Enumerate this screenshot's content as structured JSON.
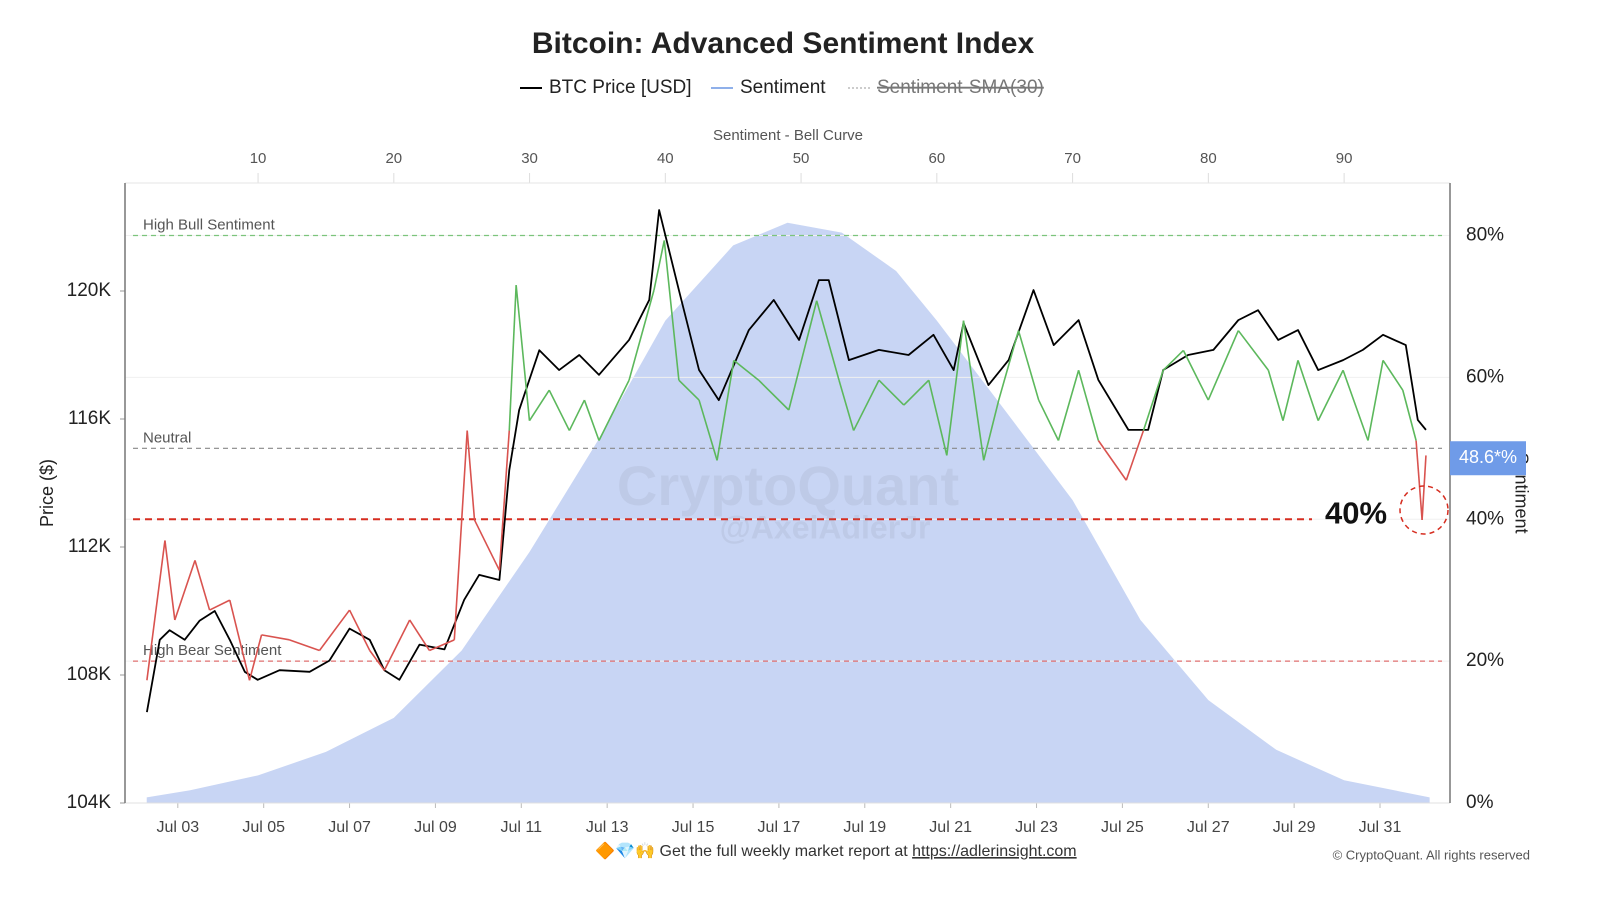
{
  "chart_data": {
    "type": "line",
    "title": "Bitcoin: Advanced Sentiment Index",
    "legend": [
      {
        "name": "BTC Price [USD]",
        "color": "#000000",
        "hidden": false
      },
      {
        "name": "Sentiment",
        "color": "#8fb0ea",
        "hidden": false
      },
      {
        "name": "Sentiment-SMA(30)",
        "color": "#999999",
        "hidden": true
      }
    ],
    "ylabel": "Price ($)",
    "y2label": "Sentiment",
    "x2label": "Sentiment - Bell Curve",
    "xlim": [
      1.77,
      32.63
    ],
    "xticks": [
      {
        "value": 3,
        "label": "Jul 03"
      },
      {
        "value": 5,
        "label": "Jul 05"
      },
      {
        "value": 7,
        "label": "Jul 07"
      },
      {
        "value": 9,
        "label": "Jul 09"
      },
      {
        "value": 11,
        "label": "Jul 11"
      },
      {
        "value": 13,
        "label": "Jul 13"
      },
      {
        "value": 15,
        "label": "Jul 15"
      },
      {
        "value": 17,
        "label": "Jul 17"
      },
      {
        "value": 19,
        "label": "Jul 19"
      },
      {
        "value": 21,
        "label": "Jul 21"
      },
      {
        "value": 23,
        "label": "Jul 23"
      },
      {
        "value": 25,
        "label": "Jul 25"
      },
      {
        "value": 27,
        "label": "Jul 27"
      },
      {
        "value": 29,
        "label": "Jul 29"
      },
      {
        "value": 31,
        "label": "Jul 31"
      }
    ],
    "x2lim": [
      0.2,
      97.8
    ],
    "x2ticks": [
      10,
      20,
      30,
      40,
      50,
      60,
      70,
      80,
      90
    ],
    "ylim": [
      104000,
      123375
    ],
    "yticks": [
      {
        "value": 104000,
        "label": "104K"
      },
      {
        "value": 108000,
        "label": "108K"
      },
      {
        "value": 112000,
        "label": "112K"
      },
      {
        "value": 116000,
        "label": "116K"
      },
      {
        "value": 120000,
        "label": "120K"
      }
    ],
    "y2lim": [
      0,
      87.4
    ],
    "y2ticks": [
      {
        "value": 0,
        "label": "0%"
      },
      {
        "value": 20,
        "label": "20%"
      },
      {
        "value": 40,
        "label": "40%"
      },
      {
        "value": 60,
        "label": "60%"
      },
      {
        "value": 80,
        "label": "80%"
      }
    ],
    "grid": true,
    "bell_curve": {
      "color": "#c8d5f4",
      "x": [
        1.8,
        5,
        10,
        15,
        20,
        25,
        30,
        35,
        40,
        45,
        49,
        53,
        57,
        60,
        65,
        70,
        75,
        80,
        85,
        90,
        96.3
      ],
      "values": [
        0.8,
        1.8,
        3.9,
        7.2,
        12,
        21.5,
        35.4,
        51,
        68,
        78.6,
        81.8,
        80.4,
        75,
        68,
        55.4,
        42.7,
        25.8,
        14.5,
        7.5,
        3.2,
        0.8
      ]
    },
    "series": [
      {
        "name": "BTC Price [USD]",
        "axis": "y",
        "color": "#000000",
        "x": [
          2.28,
          2.58,
          2.81,
          3.16,
          3.51,
          3.86,
          4.21,
          4.56,
          4.86,
          5.37,
          6.07,
          6.53,
          7.0,
          7.47,
          7.81,
          8.16,
          8.63,
          9.21,
          9.67,
          10.02,
          10.49,
          10.72,
          10.95,
          11.42,
          11.88,
          12.35,
          12.81,
          13.51,
          13.98,
          14.21,
          14.67,
          15.14,
          15.6,
          16.3,
          16.88,
          17.47,
          17.93,
          18.16,
          18.63,
          19.33,
          20.02,
          20.6,
          21.07,
          21.3,
          21.88,
          22.35,
          22.93,
          23.4,
          23.98,
          24.44,
          25.14,
          25.6,
          25.95,
          26.53,
          27.12,
          27.7,
          28.16,
          28.63,
          29.09,
          29.56,
          30.14,
          30.6,
          31.07,
          31.6,
          31.88,
          32.07
        ],
        "values": [
          106840,
          109100,
          109400,
          109100,
          109700,
          110000,
          109100,
          108100,
          107850,
          108150,
          108100,
          108450,
          109450,
          109100,
          108150,
          107850,
          108950,
          108800,
          110350,
          111130,
          110970,
          114400,
          116280,
          118150,
          117530,
          118000,
          117380,
          118470,
          119720,
          122530,
          120030,
          117530,
          116590,
          118780,
          119720,
          118470,
          120340,
          120340,
          117840,
          118160,
          118000,
          118630,
          117530,
          119000,
          117060,
          117840,
          120030,
          118310,
          119090,
          117220,
          115660,
          115660,
          117530,
          118000,
          118160,
          119090,
          119400,
          118470,
          118780,
          117530,
          117840,
          118160,
          118630,
          118310,
          115970,
          115660
        ]
      },
      {
        "name": "Sentiment",
        "axis": "y2",
        "color_above": "#5cb85c",
        "color_below": "#d9534f",
        "x": [
          2.28,
          2.7,
          2.93,
          3.4,
          3.74,
          4.21,
          4.67,
          4.95,
          5.6,
          6.3,
          7.0,
          7.47,
          7.81,
          8.4,
          8.86,
          9.44,
          9.74,
          9.91,
          10.49,
          10.72,
          10.88,
          11.19,
          11.65,
          12.12,
          12.47,
          12.81,
          13.51,
          14.09,
          14.33,
          14.67,
          15.14,
          15.56,
          15.95,
          16.53,
          17.23,
          17.88,
          18.4,
          18.74,
          19.33,
          19.91,
          20.49,
          20.91,
          21.3,
          21.77,
          22.12,
          22.58,
          23.05,
          23.51,
          23.98,
          24.44,
          25.09,
          25.49,
          25.95,
          26.42,
          27.0,
          27.7,
          28.4,
          28.74,
          29.09,
          29.56,
          30.14,
          30.72,
          31.07,
          31.53,
          31.84,
          31.98,
          32.07
        ],
        "values": [
          17.3,
          37,
          25.8,
          34.2,
          27.2,
          28.6,
          17.3,
          23.7,
          23,
          21.5,
          27.2,
          21.5,
          18.7,
          25.8,
          21.5,
          23,
          52.5,
          39.9,
          32.8,
          52.5,
          73,
          53.9,
          58.2,
          52.5,
          56.8,
          51.1,
          59.6,
          72.3,
          79.3,
          59.6,
          56.8,
          48.3,
          62.4,
          59.6,
          55.4,
          70.8,
          59.6,
          52.5,
          59.6,
          56.1,
          59.6,
          49,
          68,
          48.3,
          56.8,
          66.6,
          56.8,
          51.1,
          61,
          51.1,
          45.5,
          52.5,
          61,
          63.8,
          56.8,
          66.6,
          61,
          53.9,
          62.4,
          53.9,
          61,
          51.1,
          62.4,
          58.2,
          51.1,
          39.9,
          49
        ]
      }
    ],
    "reference_lines": [
      {
        "label": "High Bull Sentiment",
        "value": 80,
        "color": "#7cc47c"
      },
      {
        "label": "Neutral",
        "value": 50,
        "color": "#888888"
      },
      {
        "label": "High Bear Sentiment",
        "value": 20,
        "color": "#e07070"
      }
    ],
    "threshold": {
      "value": 40,
      "label": "40%",
      "color": "#d62d20"
    },
    "current": {
      "value": 48.6,
      "label": "48.6*%",
      "color": "#6f9be8"
    },
    "watermark": [
      "CryptoQuant",
      "@AxelAdlerJr"
    ],
    "footer": {
      "text": "🔶💎🙌 Get the full weekly market report at ",
      "link": "https://adlerinsight.com",
      "copyright": "© CryptoQuant. All rights reserved"
    }
  }
}
